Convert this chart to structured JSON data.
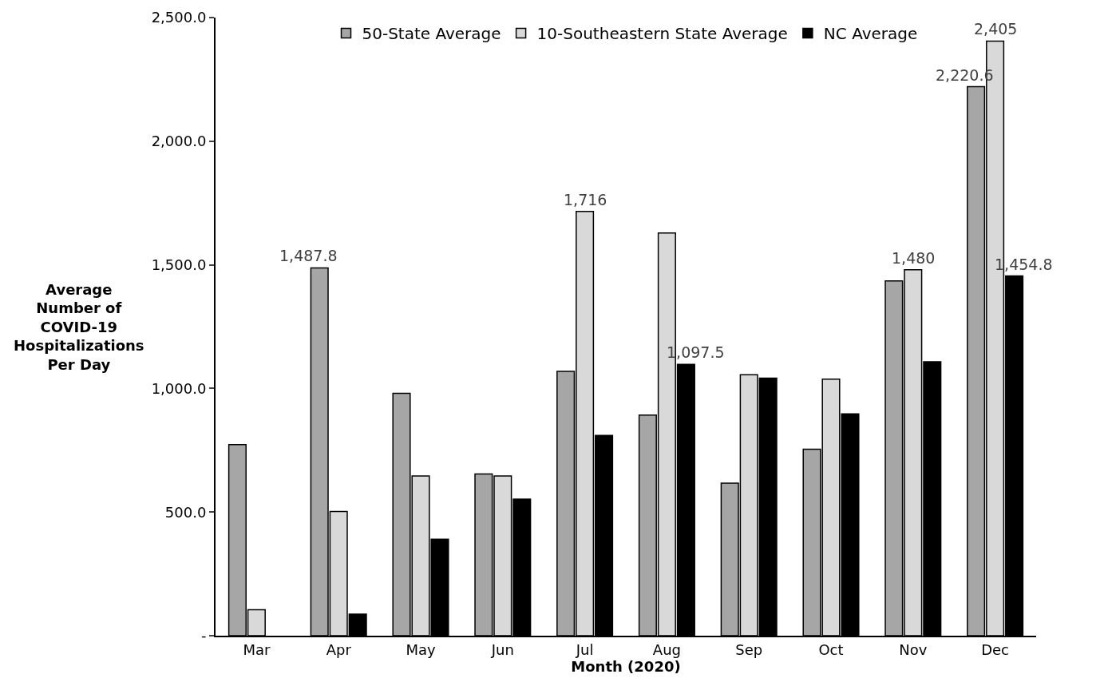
{
  "chart_data": {
    "type": "bar",
    "xlabel": "Month (2020)",
    "ylabel": "Average\nNumber of\nCOVID-19\nHospitalizations\nPer Day",
    "categories": [
      "Mar",
      "Apr",
      "May",
      "Jun",
      "Jul",
      "Aug",
      "Sep",
      "Oct",
      "Nov",
      "Dec"
    ],
    "series": [
      {
        "name": "50-State Average",
        "color": "#a6a6a6",
        "values": [
          773,
          1487.8,
          980,
          654,
          1069,
          892,
          617,
          754,
          1435,
          2220.6
        ],
        "value_labels": [
          null,
          "1,487.8",
          null,
          null,
          null,
          null,
          null,
          null,
          null,
          "2,220.6"
        ]
      },
      {
        "name": "10-Southeastern State Average",
        "color": "#d9d9d9",
        "values": [
          105,
          502,
          646,
          646,
          1716,
          1629,
          1055,
          1038,
          1480,
          2405
        ],
        "value_labels": [
          null,
          null,
          null,
          null,
          "1,716",
          null,
          null,
          null,
          "1,480",
          "2,405"
        ]
      },
      {
        "name": "NC Average",
        "color": "#000000",
        "values": [
          null,
          87,
          390,
          552,
          810,
          1097.5,
          1042,
          897,
          1108,
          1454.8
        ],
        "value_labels": [
          null,
          null,
          null,
          null,
          null,
          "1,097.5",
          null,
          null,
          null,
          "1,454.8"
        ]
      }
    ],
    "ylim": [
      0,
      2500
    ],
    "yticks": [
      {
        "value": 0,
        "label": "-"
      },
      {
        "value": 500,
        "label": "500.0"
      },
      {
        "value": 1000,
        "label": "1,000.0"
      },
      {
        "value": 1500,
        "label": "1,500.0"
      },
      {
        "value": 2000,
        "label": "2,000.0"
      },
      {
        "value": 2500,
        "label": "2,500.0"
      }
    ],
    "grid": false,
    "legend": "top"
  }
}
